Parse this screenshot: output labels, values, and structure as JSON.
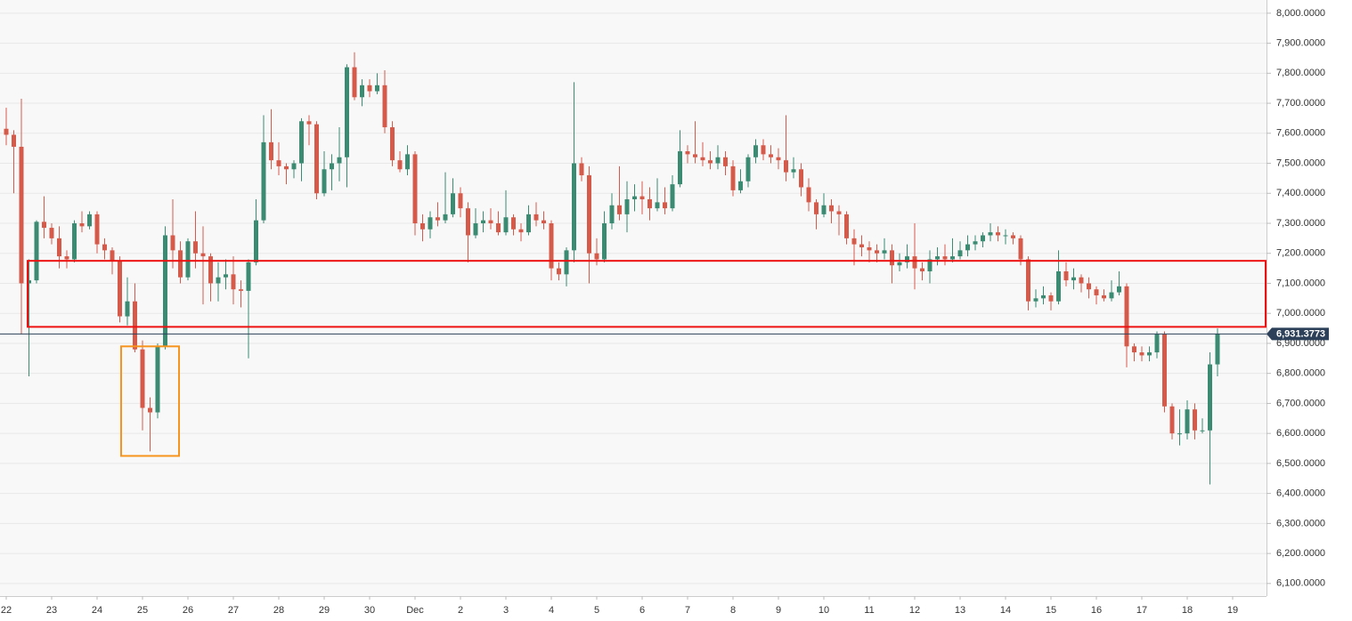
{
  "chart_data": {
    "type": "candlestick",
    "categories": [
      "22",
      null,
      null,
      null,
      null,
      null,
      "23",
      null,
      null,
      null,
      null,
      null,
      "24",
      null,
      null,
      null,
      null,
      null,
      "25",
      null,
      null,
      null,
      null,
      null,
      "26",
      null,
      null,
      null,
      null,
      null,
      "27",
      null,
      null,
      null,
      null,
      null,
      "28",
      null,
      null,
      null,
      null,
      null,
      "29",
      null,
      null,
      null,
      null,
      null,
      "30",
      null,
      null,
      null,
      null,
      null,
      "Dec",
      null,
      null,
      null,
      null,
      null,
      "2",
      null,
      null,
      null,
      null,
      null,
      "3",
      null,
      null,
      null,
      null,
      null,
      "4",
      null,
      null,
      null,
      null,
      null,
      "5",
      null,
      null,
      null,
      null,
      null,
      "6",
      null,
      null,
      null,
      null,
      null,
      "7",
      null,
      null,
      null,
      null,
      null,
      "8",
      null,
      null,
      null,
      null,
      null,
      "9",
      null,
      null,
      null,
      null,
      null,
      "10",
      null,
      null,
      null,
      null,
      null,
      "11",
      null,
      null,
      null,
      null,
      null,
      "12",
      null,
      null,
      null,
      null,
      null,
      "13",
      null,
      null,
      null,
      null,
      null,
      "14",
      null,
      null,
      null,
      null,
      null,
      "15",
      null,
      null,
      null,
      null,
      null,
      "16",
      null,
      null,
      null,
      null,
      null,
      "17",
      null,
      null,
      null,
      null,
      null,
      "18",
      null,
      null,
      null,
      null,
      null,
      "19",
      null
    ],
    "open": [
      7615,
      7595,
      7555,
      7100,
      7110,
      7305,
      7285,
      7250,
      7190,
      7180,
      7300,
      7290,
      7330,
      7230,
      7210,
      7175,
      6990,
      7040,
      6880,
      6685,
      6670,
      6890,
      7260,
      7210,
      7120,
      7240,
      7200,
      7190,
      7100,
      7120,
      7130,
      7080,
      7075,
      7170,
      7310,
      7570,
      7510,
      7490,
      7480,
      7500,
      7640,
      7630,
      7400,
      7480,
      7500,
      7520,
      7820,
      7720,
      7760,
      7740,
      7760,
      7620,
      7510,
      7480,
      7530,
      7300,
      7280,
      7320,
      7310,
      7330,
      7400,
      7350,
      7260,
      7300,
      7310,
      7300,
      7270,
      7320,
      7280,
      7270,
      7330,
      7310,
      7300,
      7150,
      7130,
      7210,
      7500,
      7460,
      7200,
      7180,
      7300,
      7360,
      7330,
      7380,
      7390,
      7380,
      7350,
      7370,
      7350,
      7430,
      7540,
      7530,
      7520,
      7510,
      7500,
      7520,
      7490,
      7410,
      7440,
      7520,
      7560,
      7530,
      7520,
      7510,
      7470,
      7480,
      7420,
      7370,
      7330,
      7360,
      7340,
      7330,
      7250,
      7230,
      7220,
      7210,
      7200,
      7210,
      7160,
      7170,
      7190,
      7150,
      7140,
      7180,
      7190,
      7180,
      7190,
      7210,
      7230,
      7240,
      7260,
      7270,
      7260,
      7260,
      7250,
      7180,
      7040,
      7050,
      7060,
      7040,
      7140,
      7110,
      7120,
      7100,
      7080,
      7060,
      7050,
      7070,
      7090,
      6890,
      6870,
      6860,
      6870,
      6930,
      6690,
      6600,
      6600,
      6680,
      6610,
      6610,
      6830,
      null,
      null,
      null
    ],
    "high": [
      7685,
      7610,
      7715,
      7180,
      7310,
      7390,
      7300,
      7290,
      7210,
      7310,
      7340,
      7340,
      7340,
      7250,
      7220,
      7190,
      7120,
      7100,
      6910,
      6720,
      6900,
      7290,
      7380,
      7240,
      7250,
      7340,
      7290,
      7200,
      7170,
      7180,
      7190,
      7110,
      7180,
      7380,
      7660,
      7680,
      7570,
      7500,
      7510,
      7650,
      7660,
      7640,
      7540,
      7530,
      7620,
      7830,
      7870,
      7780,
      7780,
      7800,
      7810,
      7640,
      7540,
      7560,
      7540,
      7330,
      7340,
      7370,
      7470,
      7450,
      7420,
      7370,
      7350,
      7340,
      7350,
      7340,
      7410,
      7330,
      7300,
      7360,
      7370,
      7340,
      7310,
      7170,
      7220,
      7770,
      7520,
      7490,
      7250,
      7340,
      7400,
      7490,
      7440,
      7430,
      7440,
      7420,
      7450,
      7420,
      7460,
      7610,
      7560,
      7640,
      7570,
      7540,
      7560,
      7540,
      7510,
      7480,
      7530,
      7580,
      7580,
      7560,
      7550,
      7660,
      7520,
      7500,
      7450,
      7380,
      7400,
      7380,
      7360,
      7340,
      7280,
      7260,
      7240,
      7230,
      7250,
      7230,
      7200,
      7230,
      7300,
      7170,
      7210,
      7220,
      7230,
      7250,
      7240,
      7260,
      7260,
      7270,
      7300,
      7290,
      7280,
      7270,
      7260,
      7190,
      7080,
      7090,
      7070,
      7210,
      7170,
      7150,
      7130,
      7120,
      7090,
      7080,
      7110,
      7140,
      7100,
      6900,
      6890,
      6890,
      6940,
      6940,
      6700,
      6680,
      6710,
      6700,
      6650,
      6870,
      6950,
      null,
      null,
      null
    ],
    "low": [
      7560,
      7400,
      6930,
      6790,
      7100,
      7250,
      7230,
      7150,
      7150,
      7170,
      7270,
      7280,
      7200,
      7180,
      7130,
      6970,
      6960,
      6870,
      6610,
      6540,
      6650,
      6880,
      7150,
      7100,
      7110,
      7150,
      7030,
      7040,
      7040,
      7080,
      7030,
      7020,
      6850,
      7160,
      7300,
      7480,
      7460,
      7430,
      7450,
      7440,
      7560,
      7380,
      7390,
      7410,
      7440,
      7420,
      7710,
      7690,
      7720,
      7730,
      7600,
      7490,
      7470,
      7460,
      7260,
      7240,
      7250,
      7290,
      7300,
      7320,
      7320,
      7170,
      7250,
      7270,
      7280,
      7260,
      7260,
      7260,
      7240,
      7260,
      7290,
      7280,
      7110,
      7110,
      7090,
      7170,
      7440,
      7100,
      7160,
      7170,
      7280,
      7310,
      7270,
      7340,
      7330,
      7310,
      7340,
      7330,
      7340,
      7420,
      7500,
      7500,
      7490,
      7480,
      7480,
      7460,
      7390,
      7400,
      7420,
      7500,
      7510,
      7500,
      7480,
      7440,
      7450,
      7390,
      7340,
      7280,
      7320,
      7300,
      7260,
      7230,
      7160,
      7190,
      7170,
      7170,
      7180,
      7100,
      7140,
      7150,
      7080,
      7110,
      7100,
      7160,
      7160,
      7170,
      7180,
      7190,
      7210,
      7220,
      7240,
      7240,
      7230,
      7230,
      7160,
      7010,
      7020,
      7030,
      7010,
      7030,
      7090,
      7080,
      7070,
      7050,
      7030,
      7040,
      7040,
      7060,
      6820,
      6840,
      6840,
      6840,
      6850,
      6670,
      6580,
      6560,
      6580,
      6580,
      6600,
      6430,
      6790,
      null,
      null,
      null
    ],
    "close": [
      7595,
      7555,
      7100,
      7110,
      7305,
      7285,
      7250,
      7190,
      7180,
      7300,
      7290,
      7330,
      7230,
      7210,
      7175,
      6990,
      7040,
      6880,
      6685,
      6670,
      6890,
      7260,
      7210,
      7120,
      7240,
      7200,
      7190,
      7100,
      7120,
      7130,
      7080,
      7075,
      7170,
      7310,
      7570,
      7510,
      7490,
      7480,
      7500,
      7640,
      7630,
      7400,
      7480,
      7500,
      7520,
      7820,
      7720,
      7760,
      7740,
      7760,
      7620,
      7510,
      7480,
      7530,
      7300,
      7280,
      7320,
      7310,
      7330,
      7400,
      7350,
      7260,
      7300,
      7310,
      7300,
      7270,
      7320,
      7280,
      7270,
      7330,
      7310,
      7300,
      7150,
      7130,
      7210,
      7500,
      7460,
      7200,
      7180,
      7300,
      7360,
      7330,
      7380,
      7390,
      7380,
      7350,
      7370,
      7350,
      7430,
      7540,
      7530,
      7520,
      7510,
      7500,
      7520,
      7490,
      7410,
      7440,
      7520,
      7560,
      7530,
      7520,
      7510,
      7470,
      7480,
      7420,
      7370,
      7330,
      7360,
      7340,
      7330,
      7250,
      7230,
      7220,
      7210,
      7200,
      7210,
      7160,
      7170,
      7190,
      7150,
      7140,
      7180,
      7190,
      7180,
      7190,
      7210,
      7230,
      7240,
      7260,
      7270,
      7260,
      7260,
      7250,
      7180,
      7040,
      7050,
      7060,
      7040,
      7140,
      7110,
      7120,
      7100,
      7080,
      7060,
      7050,
      7070,
      7090,
      6890,
      6870,
      6860,
      6870,
      6930,
      6690,
      6600,
      6600,
      6680,
      6610,
      6610,
      6830,
      6931.3773,
      null,
      null,
      null
    ],
    "up_color": "#3b8a72",
    "down_color": "#d65a4a",
    "ylim": [
      6058,
      8044
    ],
    "yticks": [
      {
        "value": 6100,
        "label": "6,100.0000"
      },
      {
        "value": 6200,
        "label": "6,200.0000"
      },
      {
        "value": 6300,
        "label": "6,300.0000"
      },
      {
        "value": 6400,
        "label": "6,400.0000"
      },
      {
        "value": 6500,
        "label": "6,500.0000"
      },
      {
        "value": 6600,
        "label": "6,600.0000"
      },
      {
        "value": 6700,
        "label": "6,700.0000"
      },
      {
        "value": 6800,
        "label": "6,800.0000"
      },
      {
        "value": 6900,
        "label": "6,900.0000"
      },
      {
        "value": 7000,
        "label": "7,000.0000"
      },
      {
        "value": 7100,
        "label": "7,100.0000"
      },
      {
        "value": 7200,
        "label": "7,200.0000"
      },
      {
        "value": 7300,
        "label": "7,300.0000"
      },
      {
        "value": 7400,
        "label": "7,400.0000"
      },
      {
        "value": 7500,
        "label": "7,500.0000"
      },
      {
        "value": 7600,
        "label": "7,600.0000"
      },
      {
        "value": 7700,
        "label": "7,700.0000"
      },
      {
        "value": 7800,
        "label": "7,800.0000"
      },
      {
        "value": 7900,
        "label": "7,900.0000"
      },
      {
        "value": 8000,
        "label": "8,000.0000"
      }
    ],
    "grid": true,
    "last_price": {
      "value": 6931.3773,
      "label": "6,931.3773"
    },
    "last_price_color": "#2c4159",
    "zones": [
      {
        "ylow": 6955,
        "yhigh": 7175,
        "color": "#ee1111"
      },
      {
        "ylow": 6525,
        "yhigh": 6890,
        "first": 16,
        "last": 22,
        "color": "#f7941d"
      }
    ]
  }
}
